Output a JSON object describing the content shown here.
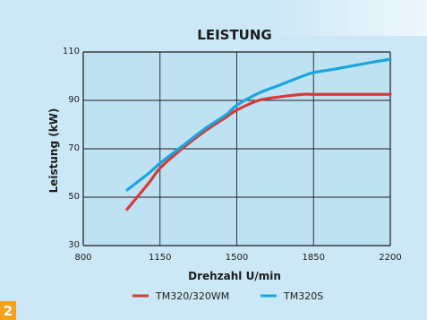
{
  "chart_data": {
    "type": "line",
    "title": "LEISTUNG",
    "xlabel": "Drehzahl U/min",
    "ylabel": "Leistung (kW)",
    "xlim": [
      800,
      2200
    ],
    "ylim": [
      30,
      110
    ],
    "xticks": [
      800,
      1150,
      1500,
      1850,
      2200
    ],
    "yticks": [
      30,
      50,
      70,
      90,
      110
    ],
    "grid": true,
    "legend_position": "bottom",
    "series": [
      {
        "name": "TM320/320WM",
        "color": "#d63a3a",
        "x": [
          1000,
          1100,
          1150,
          1250,
          1350,
          1450,
          1500,
          1600,
          1700,
          1800,
          1850,
          1950,
          2100,
          2200
        ],
        "y": [
          45,
          56,
          62,
          70,
          77,
          83,
          86,
          90,
          91.5,
          92.5,
          92.5,
          92.5,
          92.5,
          92.5
        ]
      },
      {
        "name": "TM320S",
        "color": "#1aa6dc",
        "x": [
          1000,
          1100,
          1150,
          1250,
          1350,
          1450,
          1500,
          1600,
          1700,
          1800,
          1850,
          1950,
          2100,
          2200
        ],
        "y": [
          53,
          60,
          64,
          71,
          78,
          84,
          88,
          93,
          96.5,
          100,
          101.5,
          103,
          105.5,
          107
        ]
      }
    ]
  },
  "badge": {
    "label": "2",
    "color": "#f2a21b"
  }
}
